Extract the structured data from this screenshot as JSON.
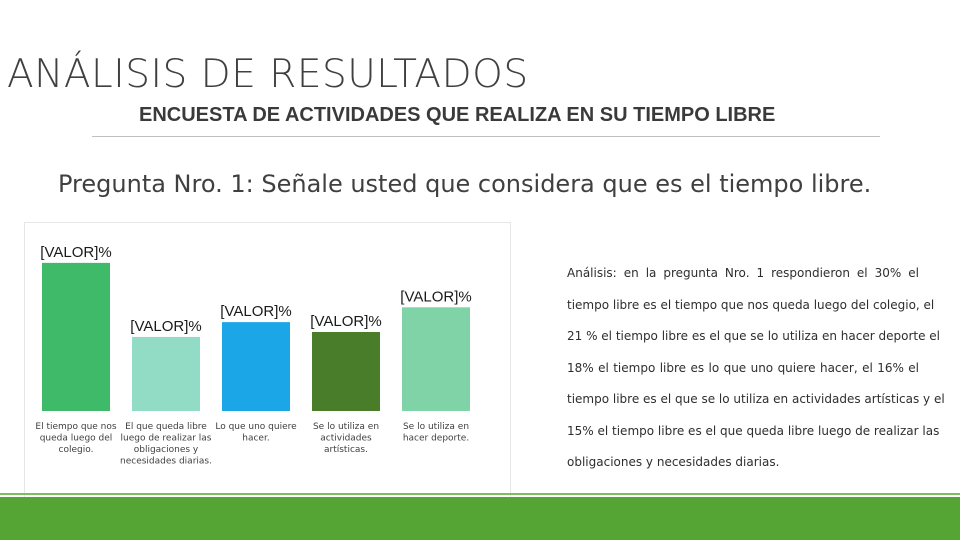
{
  "slide": {
    "title": "ANÁLISIS DE RESULTADOS",
    "subtitle": "ENCUESTA DE ACTIVIDADES QUE REALIZA EN SU TIEMPO LIBRE",
    "question": "Pregunta Nro. 1: Señale usted que considera que es el tiempo libre."
  },
  "analysis": {
    "label": "Análisis:",
    "lines": [
      "en la pregunta Nro. 1 respondieron el 30% el",
      "tiempo libre es el tiempo que nos queda luego del colegio, el",
      "21 % el tiempo libre es el que se lo utiliza en hacer deporte el",
      "18% el tiempo libre es lo que uno quiere hacer, el 16% el",
      "tiempo libre es el que se lo utiliza en actividades artísticas y el",
      "15% el tiempo libre es el que queda libre luego de realizar las",
      "obligaciones y necesidades diarias."
    ]
  },
  "colors": {
    "accent": "#54a534",
    "bars": [
      "#3fba68",
      "#92dcc6",
      "#1ba6e8",
      "#4a7d2a",
      "#7fd3a6"
    ]
  },
  "chart_data": {
    "type": "bar",
    "categories": [
      "El tiempo que nos queda luego del colegio.",
      "El que queda libre luego de realizar las obligaciones y necesidades diarias.",
      "Lo que uno quiere hacer.",
      "Se lo utiliza en actividades artísticas.",
      "Se lo utiliza en hacer deporte."
    ],
    "category_lines": [
      [
        "El tiempo que nos",
        "queda luego del",
        "colegio."
      ],
      [
        "El que queda libre",
        "luego de realizar las",
        "obligaciones y",
        "necesidades diarias."
      ],
      [
        "Lo que uno quiere",
        "hacer."
      ],
      [
        "Se lo utiliza en",
        "actividades",
        "artísticas."
      ],
      [
        "Se lo utiliza en",
        "hacer deporte."
      ]
    ],
    "values": [
      30,
      15,
      18,
      16,
      21
    ],
    "data_labels": [
      "[VALOR]%",
      "[VALOR]%",
      "[VALOR]%",
      "[VALOR]%",
      "[VALOR]%"
    ],
    "ylim": [
      0,
      32
    ],
    "grid": false,
    "legend": "none"
  }
}
